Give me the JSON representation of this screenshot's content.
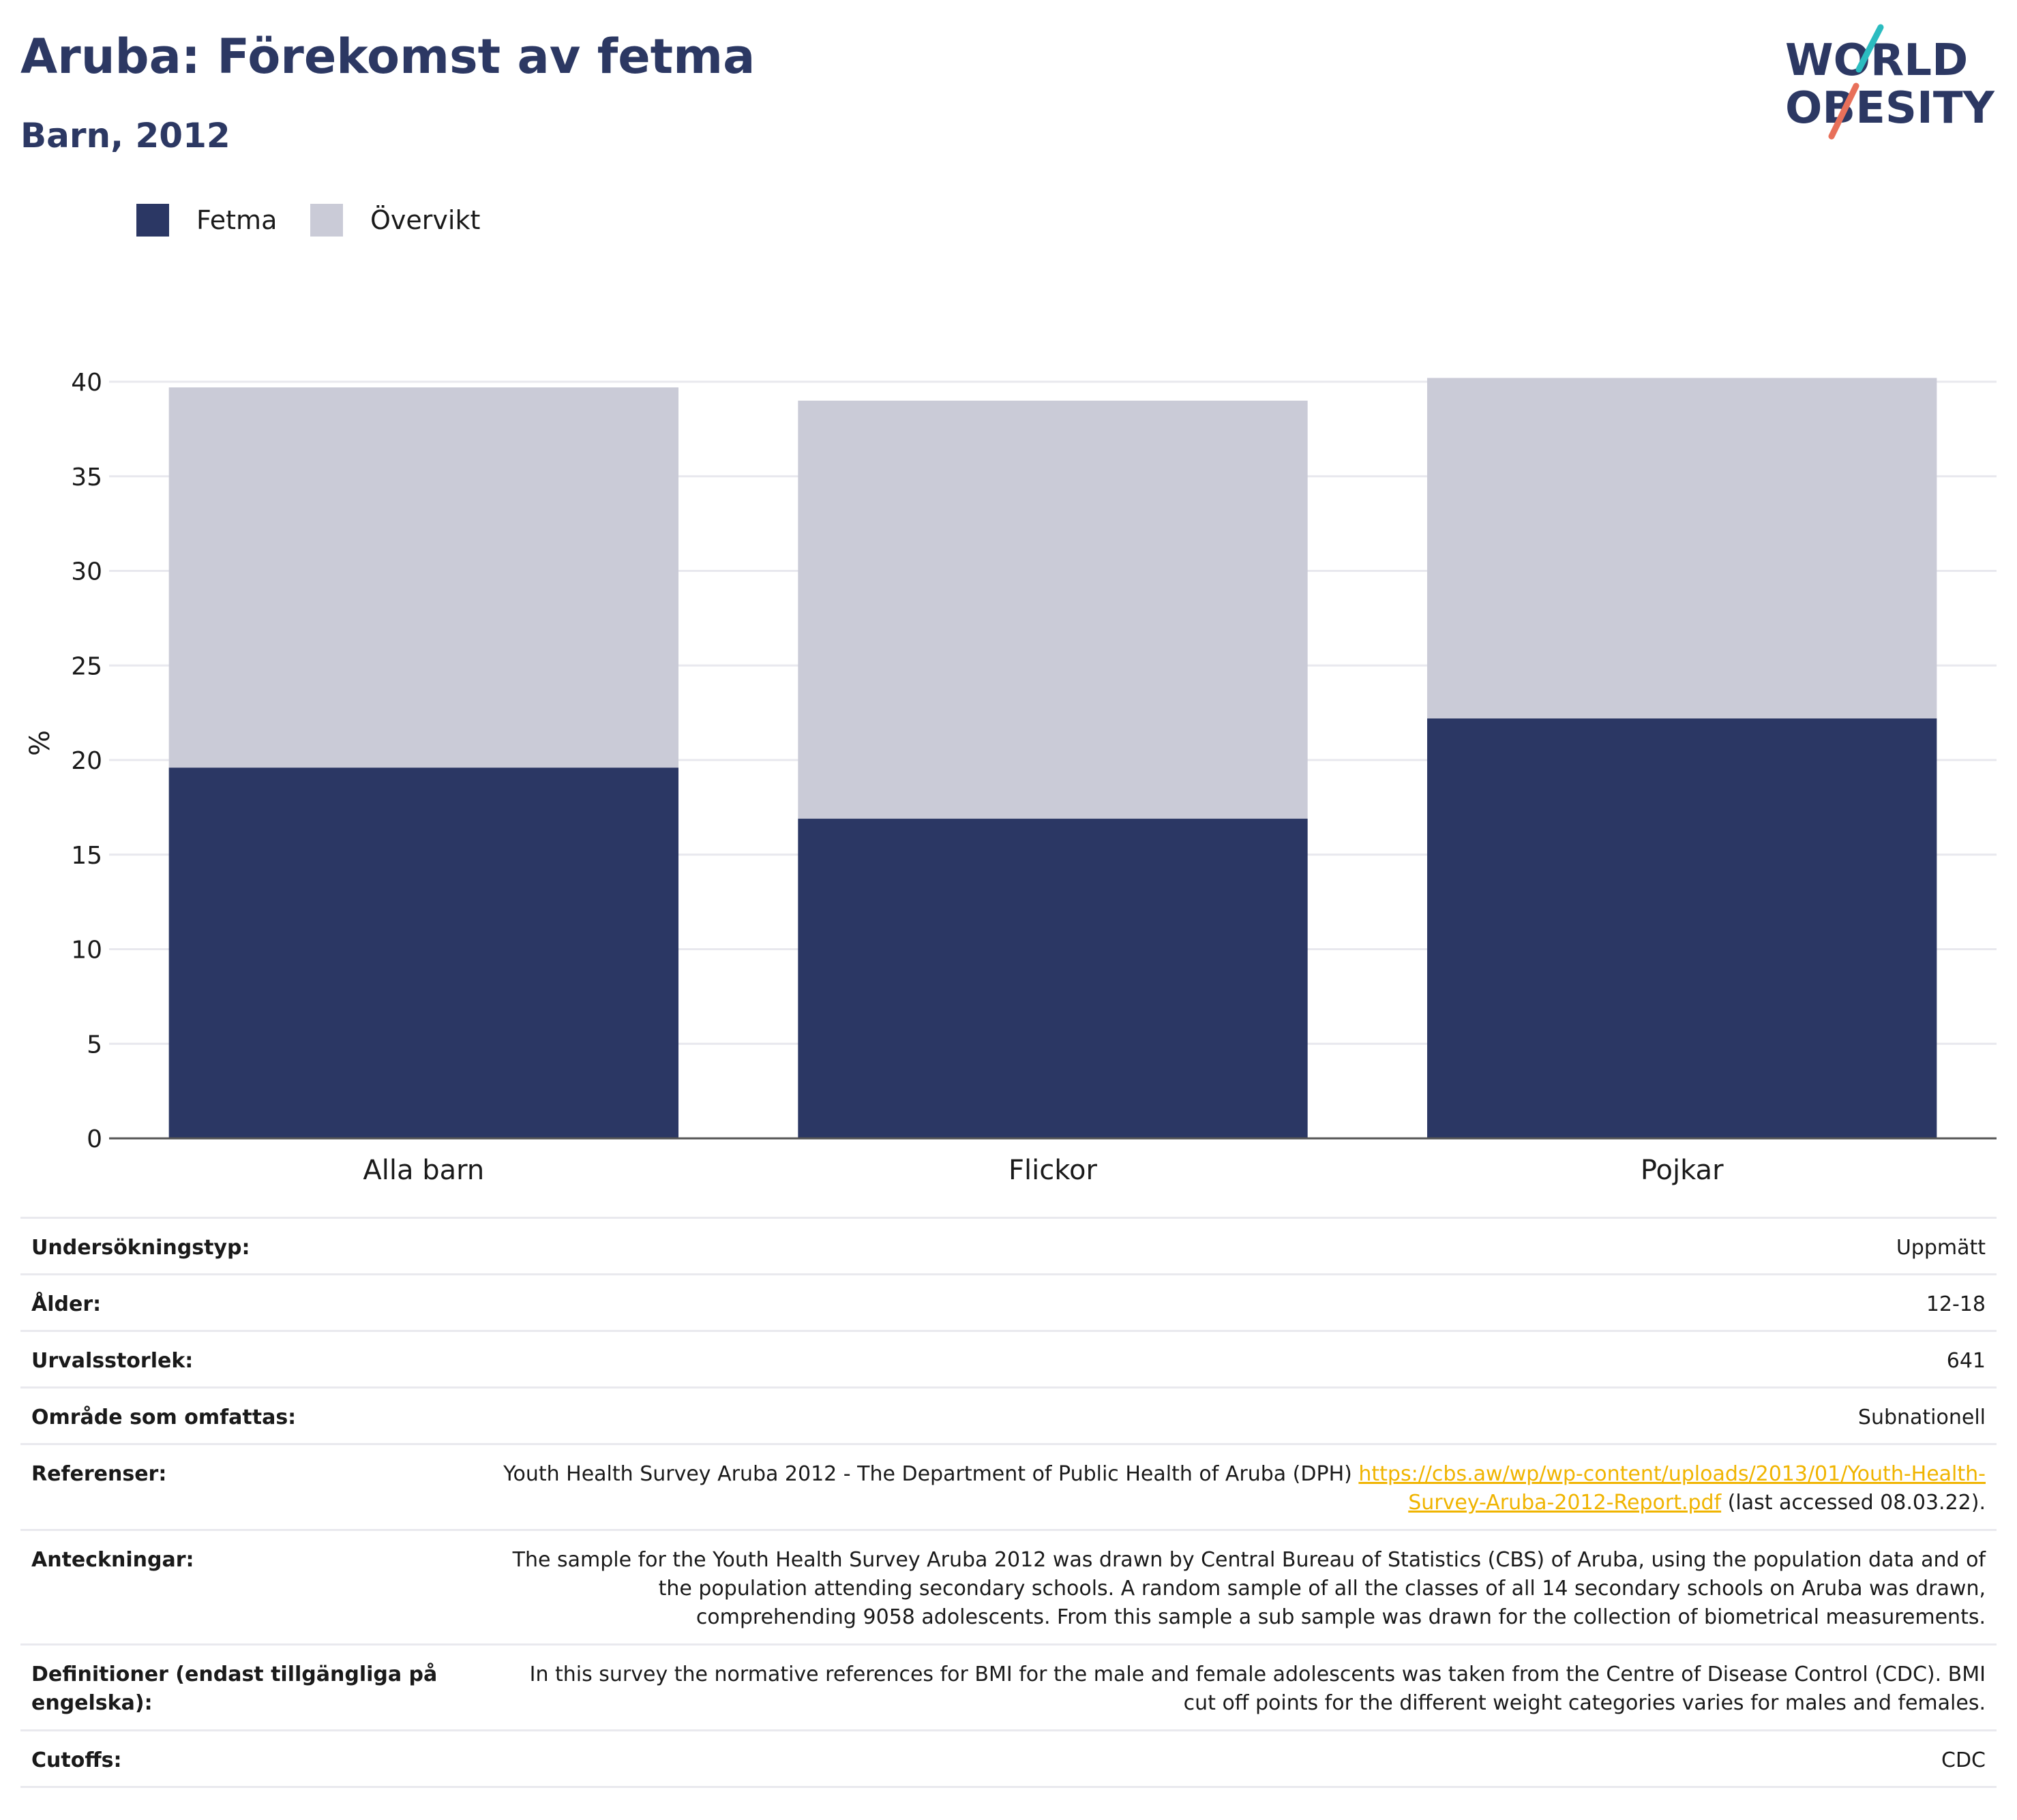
{
  "header": {
    "title": "Aruba: Förekomst av fetma",
    "subtitle": "Barn, 2012",
    "logo_text_line1": "WORLD",
    "logo_text_line2": "OBESITY"
  },
  "colors": {
    "fetma": "#2b3764",
    "overvikt": "#cacbd7",
    "brand_navy": "#2c3863",
    "logo_teal": "#2bbcc0",
    "logo_coral": "#e8705a",
    "link": "#f0b400"
  },
  "legend": {
    "items": [
      {
        "label": "Fetma",
        "color": "#2b3764"
      },
      {
        "label": "Övervikt",
        "color": "#cacbd7"
      }
    ]
  },
  "chart_data": {
    "type": "bar",
    "stacked": true,
    "categories": [
      "Alla barn",
      "Flickor",
      "Pojkar"
    ],
    "series": [
      {
        "name": "Fetma",
        "values": [
          19.6,
          16.9,
          22.2
        ]
      },
      {
        "name": "Övervikt",
        "values": [
          20.1,
          22.1,
          18.0
        ]
      }
    ],
    "ylabel": "%",
    "ylim": [
      0,
      40
    ],
    "yticks": [
      0,
      5,
      10,
      15,
      20,
      25,
      30,
      35,
      40
    ],
    "grid": true,
    "legend_position": "top-left"
  },
  "info": {
    "rows": [
      {
        "key": "Undersökningstyp:",
        "value": "Uppmätt"
      },
      {
        "key": "Ålder:",
        "value": "12-18"
      },
      {
        "key": "Urvalsstorlek:",
        "value": "641"
      },
      {
        "key": "Område som omfattas:",
        "value": "Subnationell"
      },
      {
        "key": "Referenser:",
        "value": "Youth Health Survey Aruba 2012 - The Department of Public Health of Aruba (DPH) ",
        "link": "https://cbs.aw/wp/wp-content/uploads/2013/01/Youth-Health-Survey-Aruba-2012-Report.pdf",
        "suffix": " (last accessed 08.03.22)."
      },
      {
        "key": "Anteckningar:",
        "value": "The sample for the Youth Health Survey Aruba 2012 was drawn by Central Bureau of Statistics (CBS) of Aruba, using the population data and of the population attending secondary schools. A random sample of all the classes of all 14 secondary schools on Aruba was drawn, comprehending 9058 adolescents. From this sample a sub sample was drawn for the collection of biometrical measurements."
      },
      {
        "key": "Definitioner (endast tillgängliga på engelska):",
        "value": "In this survey the normative references for BMI for the male and female adolescents was taken from the Centre of Disease Control (CDC). BMI cut off points for the different weight categories varies for males and females."
      },
      {
        "key": "Cutoffs:",
        "value": "CDC"
      }
    ]
  }
}
